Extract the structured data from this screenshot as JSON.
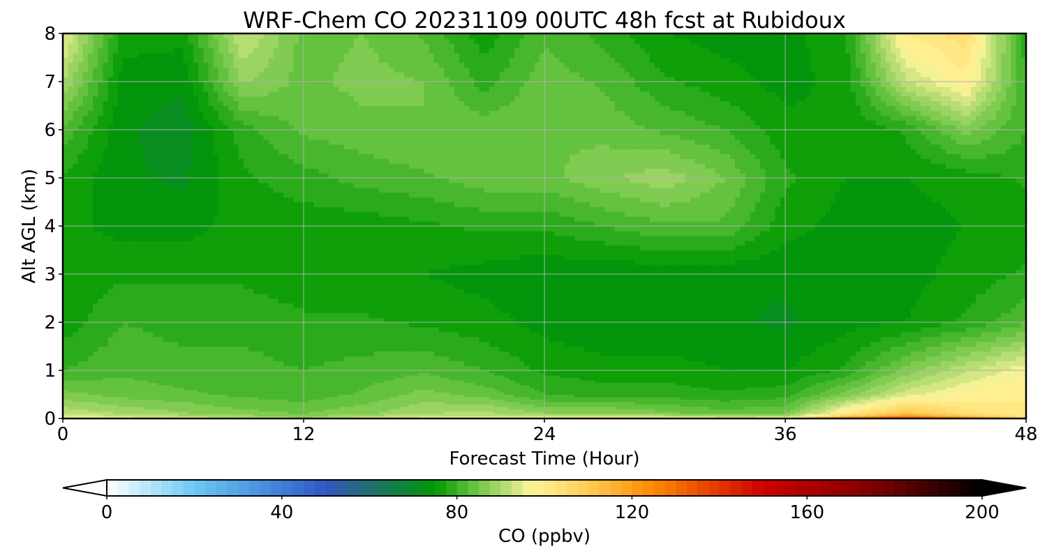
{
  "chart_data": {
    "type": "heatmap",
    "title": "WRF-Chem CO  20231109 00UTC 48h fcst at Rubidoux",
    "xlabel": "Forecast Time (Hour)",
    "ylabel": "Alt AGL (km)",
    "xlim": [
      0,
      48
    ],
    "ylim": [
      0,
      8
    ],
    "xticks": [
      0,
      12,
      24,
      36,
      48
    ],
    "yticks": [
      0,
      1,
      2,
      3,
      4,
      5,
      6,
      7,
      8
    ],
    "grid": true,
    "colorbar": {
      "label": "CO  (ppbv)",
      "range": [
        0,
        200
      ],
      "ticks": [
        0,
        40,
        80,
        120,
        160,
        200
      ],
      "extend": "both",
      "stops": [
        {
          "v": 0,
          "c": "#ffffff"
        },
        {
          "v": 20,
          "c": "#6cc8f5"
        },
        {
          "v": 40,
          "c": "#3d7fd6"
        },
        {
          "v": 50,
          "c": "#3456c4"
        },
        {
          "v": 60,
          "c": "#1e6f6e"
        },
        {
          "v": 70,
          "c": "#0a8a2a"
        },
        {
          "v": 75,
          "c": "#009900"
        },
        {
          "v": 83,
          "c": "#5cbf3a"
        },
        {
          "v": 92,
          "c": "#bfe07a"
        },
        {
          "v": 97,
          "c": "#fff59a"
        },
        {
          "v": 110,
          "c": "#ffcc55"
        },
        {
          "v": 125,
          "c": "#ff8800"
        },
        {
          "v": 150,
          "c": "#cc0000"
        },
        {
          "v": 175,
          "c": "#800000"
        },
        {
          "v": 200,
          "c": "#000000"
        }
      ]
    },
    "x": [
      0,
      3,
      6,
      9,
      12,
      15,
      18,
      21,
      24,
      27,
      30,
      33,
      36,
      39,
      42,
      45,
      48
    ],
    "y": [
      0,
      0.1,
      0.5,
      1,
      2,
      3,
      4,
      5,
      6,
      7,
      8
    ],
    "z": [
      [
        100,
        97,
        95,
        93,
        91,
        95,
        97,
        97,
        102,
        105,
        102,
        98,
        99,
        125,
        140,
        125,
        106
      ],
      [
        92,
        90,
        88,
        86,
        85,
        87,
        90,
        91,
        88,
        88,
        86,
        84,
        85,
        100,
        112,
        104,
        100
      ],
      [
        86,
        84,
        83,
        82,
        81,
        83,
        86,
        84,
        80,
        79,
        79,
        78,
        79,
        86,
        94,
        98,
        100
      ],
      [
        80,
        82,
        81,
        81,
        80,
        81,
        82,
        80,
        77,
        76,
        76,
        75,
        75,
        78,
        86,
        92,
        97
      ],
      [
        76,
        80,
        79,
        79,
        78,
        78,
        77,
        76,
        74,
        73,
        73,
        73,
        72,
        74,
        75,
        78,
        82
      ],
      [
        76,
        77,
        77,
        77,
        76,
        75,
        75,
        74,
        73,
        73,
        73,
        73,
        73,
        74,
        74,
        76,
        78
      ],
      [
        76,
        74,
        74,
        76,
        76,
        76,
        77,
        78,
        78,
        80,
        82,
        82,
        76,
        74,
        74,
        75,
        76
      ],
      [
        77,
        73,
        72,
        77,
        79,
        81,
        82,
        84,
        84,
        87,
        89,
        85,
        78,
        75,
        75,
        76,
        78
      ],
      [
        82,
        73,
        71,
        79,
        83,
        84,
        85,
        84,
        85,
        84,
        82,
        80,
        76,
        75,
        78,
        86,
        80
      ],
      [
        90,
        74,
        73,
        88,
        84,
        86,
        85,
        79,
        84,
        82,
        78,
        76,
        74,
        76,
        92,
        99,
        80
      ],
      [
        96,
        76,
        76,
        93,
        84,
        85,
        82,
        76,
        82,
        79,
        75,
        74,
        74,
        77,
        100,
        104,
        78
      ]
    ]
  }
}
